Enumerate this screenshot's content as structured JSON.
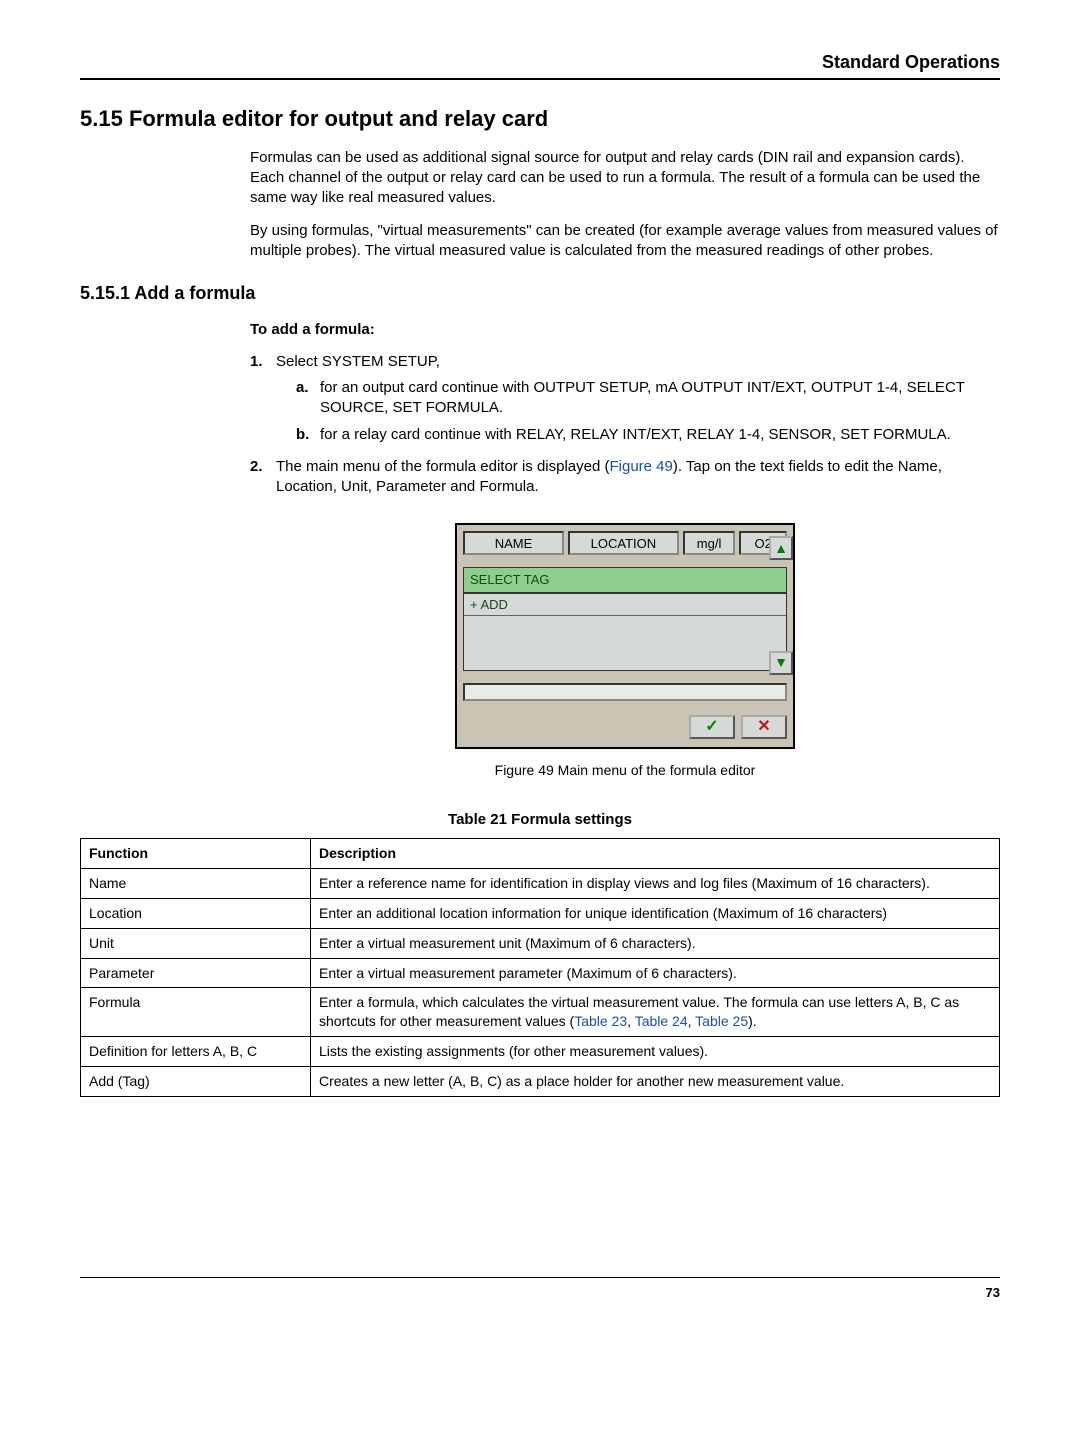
{
  "header": {
    "title": "Standard Operations"
  },
  "section": {
    "number": "5.15",
    "title": "Formula editor for output and relay card",
    "intro_p1": "Formulas can be used as additional signal source for output and relay cards (DIN rail and expansion cards). Each channel of the output or relay card can be used to run a formula. The result of a formula can be used the same way like real measured values.",
    "intro_p2": "By using formulas, \"virtual measurements\" can be created (for example average values from measured values of multiple probes). The virtual measured value is calculated from the measured readings of other probes."
  },
  "subsection": {
    "number": "5.15.1",
    "title": "Add a formula",
    "lead_bold": "To add a formula:",
    "steps": [
      {
        "num": "1.",
        "text": "Select SYSTEM SETUP,",
        "subs": [
          {
            "letter": "a.",
            "text": "for an output card continue with OUTPUT SETUP, mA OUTPUT INT/EXT, OUTPUT 1-4, SELECT SOURCE, SET FORMULA."
          },
          {
            "letter": "b.",
            "text": "for a relay card continue with RELAY, RELAY INT/EXT, RELAY 1-4, SENSOR, SET FORMULA."
          }
        ]
      },
      {
        "num": "2.",
        "text_before_link": "The main menu of the formula editor is displayed (",
        "link": "Figure 49",
        "text_after_link": "). Tap on the text fields to edit the Name, Location, Unit, Parameter and Formula."
      }
    ]
  },
  "figure": {
    "fields": {
      "name": "NAME",
      "location": "LOCATION",
      "unit": "mg/l",
      "param": "O2"
    },
    "select_tag": "SELECT TAG",
    "list_item": "+   ADD",
    "caption": "Figure 49  Main menu of the formula editor"
  },
  "table": {
    "title": "Table 21   Formula settings",
    "headers": {
      "func": "Function",
      "desc": "Description"
    },
    "rows": [
      {
        "func": "Name",
        "desc": "Enter a reference name for identification in display views and log files (Maximum of 16 characters)."
      },
      {
        "func": "Location",
        "desc": "Enter an additional location information for unique identification (Maximum of 16 characters)"
      },
      {
        "func": "Unit",
        "desc": "Enter a virtual measurement unit (Maximum of 6 characters)."
      },
      {
        "func": "Parameter",
        "desc": "Enter a virtual measurement parameter (Maximum of 6 characters)."
      },
      {
        "func": "Formula",
        "desc_before": "Enter a formula, which calculates the virtual measurement value. The formula can use letters A, B, C as shortcuts for other measurement values (",
        "link1": "Table 23",
        "sep1": ", ",
        "link2": "Table 24",
        "sep2": ", ",
        "link3": "Table 25",
        "desc_after": ")."
      },
      {
        "func": "Definition for letters A, B, C",
        "desc": "Lists the existing assignments (for other measurement values)."
      },
      {
        "func": "Add (Tag)",
        "desc": "Creates a new letter (A, B, C) as a place holder for another new measurement value."
      }
    ]
  },
  "footer": {
    "page": "73"
  }
}
